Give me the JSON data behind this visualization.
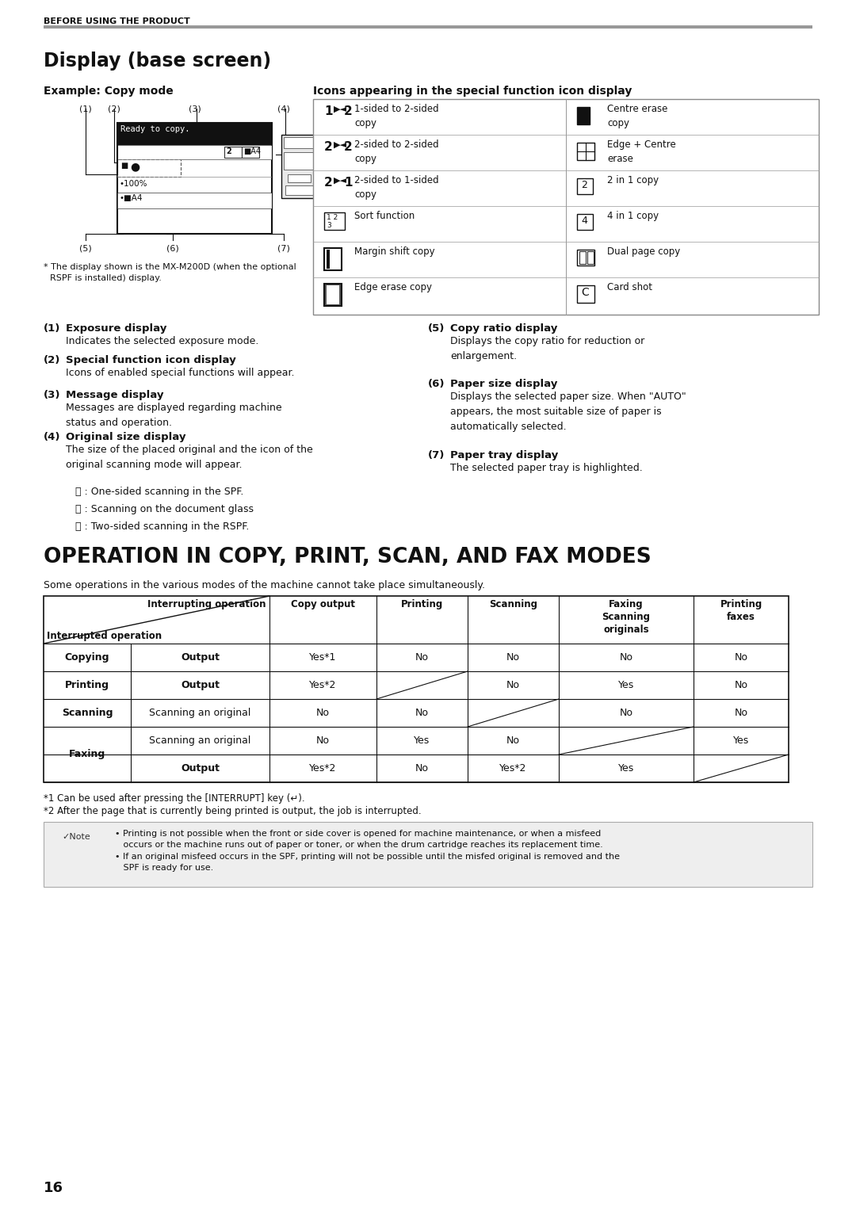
{
  "page_bg": "#ffffff",
  "header_text": "BEFORE USING THE PRODUCT",
  "section1_title": "Display (base screen)",
  "section1_subtitle": "Example: Copy mode",
  "icons_title": "Icons appearing in the special function icon display",
  "footnote_display": "* The display shown is the MX-M200D (when the optional\n  RSPF is installed) display.",
  "section2_title": "OPERATION IN COPY, PRINT, SCAN, AND FAX MODES",
  "section2_subtitle": "Some operations in the various modes of the machine cannot take place simultaneously.",
  "footnote1": "*1 Can be used after pressing the [INTERRUPT] key (↵).",
  "footnote2": "*2 After the page that is currently being printed is output, the job is interrupted.",
  "note_text": "• Printing is not possible when the front or side cover is opened for machine maintenance, or when a misfeed\n   occurs or the machine runs out of paper or toner, or when the drum cartridge reaches its replacement time.\n• If an original misfeed occurs in the SPF, printing will not be possible until the misfed original is removed and the\n   SPF is ready for use.",
  "page_number": "16"
}
